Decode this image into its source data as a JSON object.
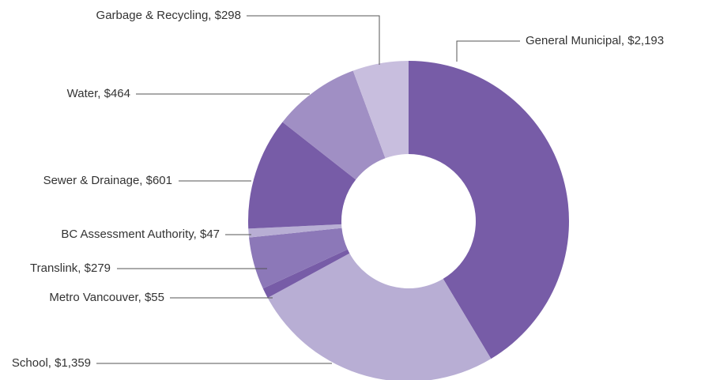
{
  "chart_data": {
    "type": "donut",
    "values": [
      2193,
      1359,
      55,
      279,
      47,
      601,
      464,
      298
    ],
    "value_labels": [
      "General Municipal, $2,193",
      "School, $1,359",
      "Metro Vancouver, $55",
      "Translink, $279",
      "BC Assessment Authority, $47",
      "Sewer & Drainage, $601",
      "Water, $464",
      "Garbage & Recycling, $298"
    ],
    "colors": [
      "#775ca7",
      "#b8aed4",
      "#775ca7",
      "#8c78b8",
      "#b8aed4",
      "#775ca7",
      "#a08fc4",
      "#c8bede"
    ]
  }
}
